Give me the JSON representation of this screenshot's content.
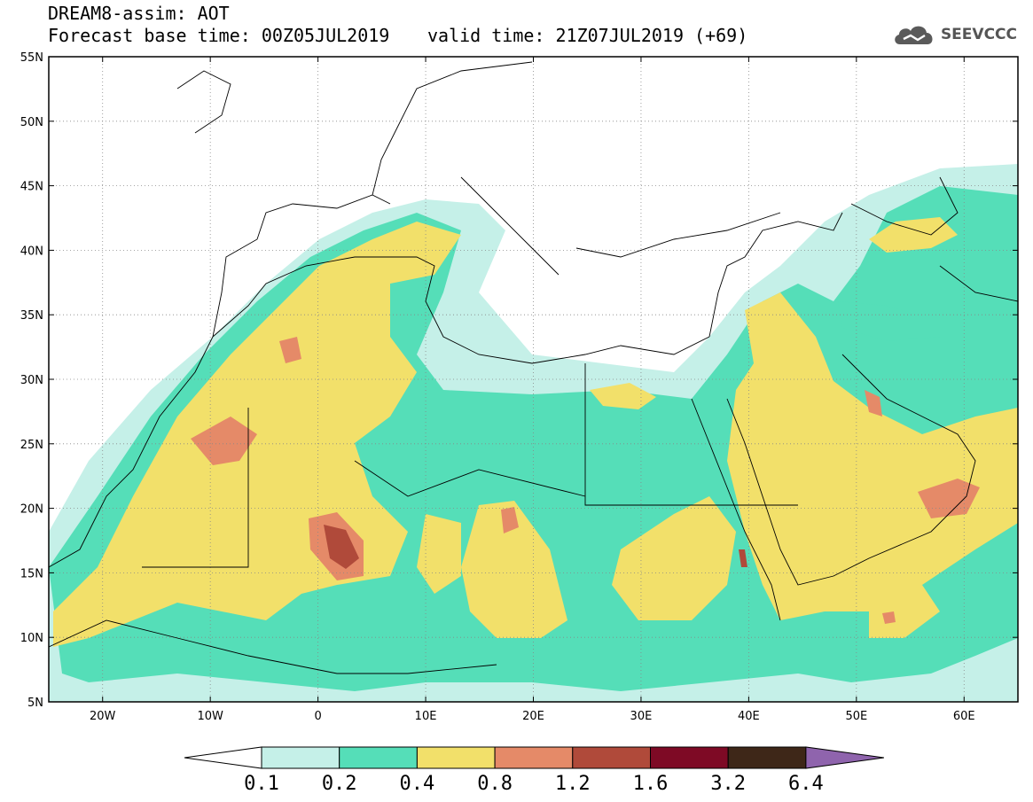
{
  "header": {
    "title": "DREAM8-assim: AOT",
    "base_time": "Forecast base time: 00Z05JUL2019",
    "valid_time": "valid time: 21Z07JUL2019 (+69)",
    "logo_text": "SEEVCCC",
    "logo_icon": "cloud-icon"
  },
  "map": {
    "lon_range": [
      -25,
      65
    ],
    "lat_range": [
      5,
      55
    ],
    "lat_ticks": [
      {
        "value": 55,
        "label": "55N"
      },
      {
        "value": 50,
        "label": "50N"
      },
      {
        "value": 45,
        "label": "45N"
      },
      {
        "value": 40,
        "label": "40N"
      },
      {
        "value": 35,
        "label": "35N"
      },
      {
        "value": 30,
        "label": "30N"
      },
      {
        "value": 25,
        "label": "25N"
      },
      {
        "value": 20,
        "label": "20N"
      },
      {
        "value": 15,
        "label": "15N"
      },
      {
        "value": 10,
        "label": "10N"
      },
      {
        "value": 5,
        "label": "5N"
      }
    ],
    "lon_ticks": [
      {
        "value": -20,
        "label": "20W"
      },
      {
        "value": -10,
        "label": "10W"
      },
      {
        "value": 0,
        "label": "0"
      },
      {
        "value": 10,
        "label": "10E"
      },
      {
        "value": 20,
        "label": "20E"
      },
      {
        "value": 30,
        "label": "30E"
      },
      {
        "value": 40,
        "label": "40E"
      },
      {
        "value": 50,
        "label": "50E"
      },
      {
        "value": 60,
        "label": "60E"
      }
    ],
    "grid": "dotted"
  },
  "colorbar": {
    "bounds": [
      "0.1",
      "0.2",
      "0.4",
      "0.8",
      "1.2",
      "1.6",
      "3.2",
      "6.4"
    ],
    "colors": [
      "#c5f0e8",
      "#55deb8",
      "#f2e06a",
      "#e58a68",
      "#b04a3a",
      "#7e0a25",
      "#3e2718",
      "#8f64ad"
    ],
    "extend": "both"
  }
}
